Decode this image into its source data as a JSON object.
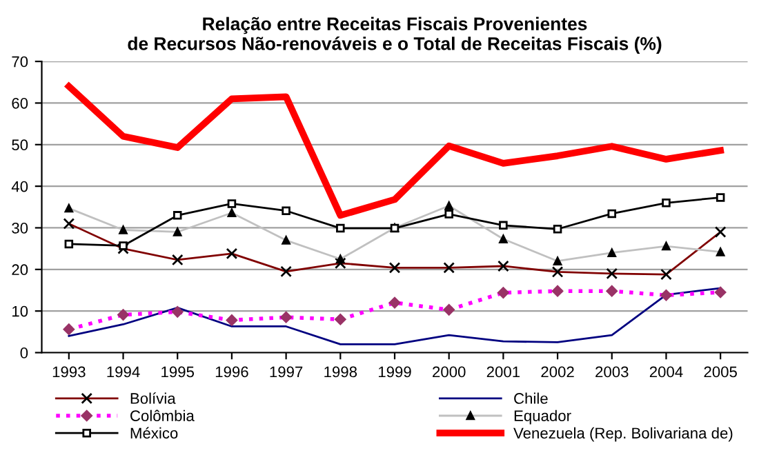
{
  "chart_data": {
    "type": "line",
    "title": "Relação entre Receitas Fiscais Provenientes\nde Recursos Não-renováveis e o Total de Receitas Fiscais (%)",
    "categories": [
      "1993",
      "1994",
      "1995",
      "1996",
      "1997",
      "1998",
      "1999",
      "2000",
      "2001",
      "2002",
      "2003",
      "2004",
      "2005"
    ],
    "series": [
      {
        "name": "Bolívia",
        "color": "#800000",
        "marker": "cross",
        "line_style": "solid",
        "values": [
          31,
          25,
          22.3,
          23.8,
          19.5,
          21.5,
          20.4,
          20.4,
          20.8,
          19.4,
          19,
          18.8,
          29
        ]
      },
      {
        "name": "Chile",
        "color": "#000080",
        "marker": "none",
        "line_style": "solid",
        "values": [
          4,
          6.8,
          10.8,
          6.3,
          6.3,
          2,
          2,
          4.2,
          2.7,
          2.5,
          4.2,
          13.9,
          15.5
        ]
      },
      {
        "name": "Colômbia",
        "color": "#ff00ff",
        "marker": "diamond",
        "line_style": "dotted",
        "values": [
          5.6,
          9.1,
          9.8,
          7.8,
          8.5,
          8,
          12,
          10.3,
          14.4,
          14.8,
          14.8,
          13.8,
          14.5
        ]
      },
      {
        "name": "Equador",
        "color": "#c0c0c0",
        "marker": "triangle",
        "line_style": "solid",
        "values": [
          34.7,
          29.5,
          29,
          33.6,
          27,
          22.5,
          30,
          35.3,
          27.3,
          22,
          24,
          25.6,
          24.2
        ]
      },
      {
        "name": "México",
        "color": "#000000",
        "marker": "square",
        "line_style": "solid",
        "values": [
          26.1,
          25.7,
          33,
          35.8,
          34.1,
          29.9,
          29.9,
          33.3,
          30.6,
          29.7,
          33.4,
          36,
          37.3
        ]
      },
      {
        "name": "Venezuela (Rep. Bolivariana de)",
        "color": "#ff0000",
        "marker": "none",
        "line_style": "solid",
        "values": [
          64,
          52,
          49.3,
          61,
          61.5,
          33,
          36.8,
          49.7,
          45.5,
          47.3,
          49.6,
          46.5,
          48.6
        ]
      }
    ],
    "ylim": [
      0,
      70
    ],
    "yticks": [
      0,
      10,
      20,
      30,
      40,
      50,
      60,
      70
    ],
    "grid": "y",
    "legend": "bottom"
  }
}
